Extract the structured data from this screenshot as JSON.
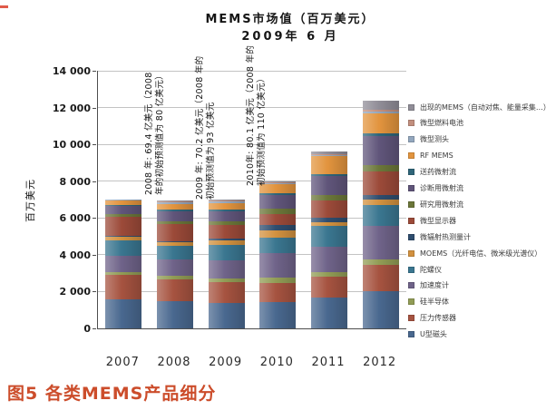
{
  "figure": {
    "title_line1": "MEMS市场值（百万美元）",
    "title_line2": "2009年 6 月",
    "caption": "图5  各类MEMS产品细分",
    "caption_color": "#cc4d2b"
  },
  "chart_data": {
    "type": "bar",
    "stacked": true,
    "title": "MEMS市场值（百万美元）",
    "subtitle": "2009年 6 月",
    "xlabel": "",
    "ylabel": "百万美元",
    "ylim": [
      0,
      14000
    ],
    "ytick_step": 2000,
    "ytick_labels": [
      "0",
      "2 000",
      "4 000",
      "6 000",
      "8 000",
      "10 000",
      "12 000",
      "14 000"
    ],
    "grid": "horizontal",
    "legend_position": "right",
    "legend_order": "top-to-bottom = top-of-stack to bottom-of-stack",
    "categories": [
      "2007",
      "2008",
      "2009",
      "2010",
      "2011",
      "2012"
    ],
    "stack_order": "bottom-to-top",
    "series": [
      {
        "name": "U型磁头",
        "color": "#49688f",
        "values": [
          1600,
          1500,
          1400,
          1450,
          1700,
          2000
        ]
      },
      {
        "name": "压力传感器",
        "color": "#a65340",
        "values": [
          1300,
          1150,
          1100,
          1000,
          1100,
          1450
        ]
      },
      {
        "name": "硅半导体",
        "color": "#919c55",
        "values": [
          150,
          200,
          200,
          300,
          250,
          300
        ]
      },
      {
        "name": "加速度计",
        "color": "#6f6389",
        "values": [
          900,
          900,
          1000,
          1350,
          1400,
          1800
        ]
      },
      {
        "name": "陀螺仪",
        "color": "#3a7690",
        "values": [
          850,
          750,
          820,
          850,
          1100,
          1150
        ]
      },
      {
        "name": "MOEMS（光纤电信、微米级光谱仪）",
        "color": "#d2913f",
        "values": [
          200,
          200,
          250,
          400,
          200,
          300
        ]
      },
      {
        "name": "微辐射热测量计",
        "color": "#2f4d6e",
        "values": [
          50,
          50,
          100,
          250,
          250,
          250
        ]
      },
      {
        "name": "微型显示器",
        "color": "#9c4a39",
        "values": [
          1000,
          900,
          750,
          600,
          950,
          1300
        ]
      },
      {
        "name": "研究用微射流",
        "color": "#6b7639",
        "values": [
          150,
          150,
          200,
          300,
          300,
          350
        ]
      },
      {
        "name": "诊断用微射流",
        "color": "#60557a",
        "values": [
          450,
          550,
          550,
          750,
          1050,
          1550
        ]
      },
      {
        "name": "送药微射流",
        "color": "#2f6579",
        "values": [
          50,
          100,
          100,
          100,
          100,
          150
        ]
      },
      {
        "name": "RF MEMS",
        "color": "#e2943e",
        "values": [
          250,
          300,
          350,
          500,
          950,
          1100
        ]
      },
      {
        "name": "微型测头",
        "color": "#93a7be",
        "values": [
          50,
          100,
          100,
          50,
          50,
          100
        ]
      },
      {
        "name": "微型燃料电池",
        "color": "#c28f7e",
        "values": [
          20,
          50,
          50,
          50,
          50,
          100
        ]
      },
      {
        "name": "出现的MEMS（自动对焦、能量采集…）",
        "color": "#908d97",
        "values": [
          10,
          40,
          50,
          60,
          150,
          500
        ]
      }
    ],
    "totals": [
      7030,
      6940,
      7020,
      8010,
      9600,
      12400
    ],
    "annotations": [
      {
        "line1": "2008 年: 69.4 亿美元（2008",
        "line2": "年的初始预测值为 80 亿美元）"
      },
      {
        "line1": "2009 年: 70.2 亿美元（2008 年的",
        "line2": "初始预测值为 93 亿美元"
      },
      {
        "line1": "2010年: 80.1 亿美元（2008 年的",
        "line2": "初始预测值为 110 亿美元）"
      }
    ]
  }
}
